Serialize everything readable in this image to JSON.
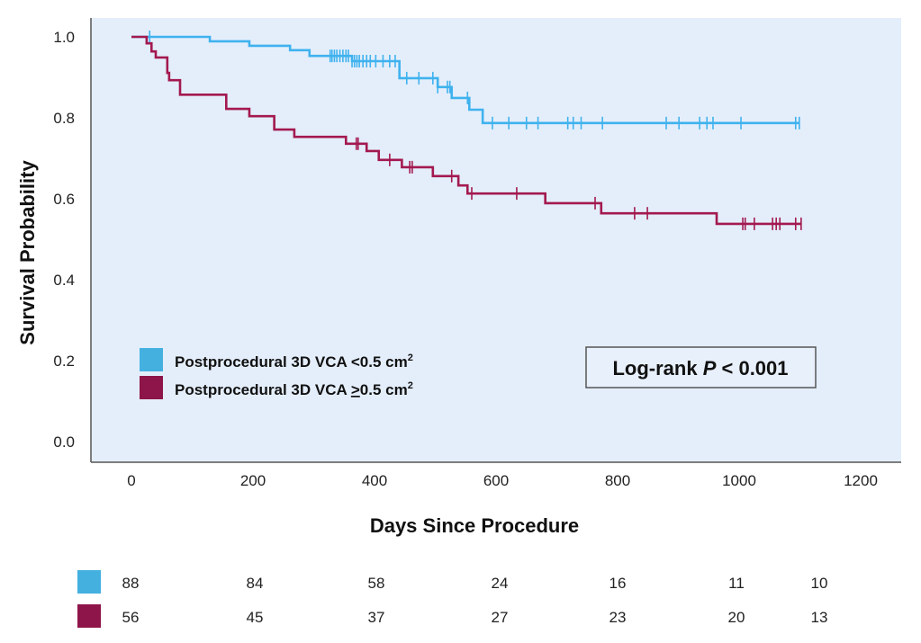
{
  "chart_data": {
    "type": "line",
    "subtype": "kaplan-meier",
    "title": "",
    "xlabel": "Days Since Procedure",
    "ylabel": "Survival Probability",
    "xlim": [
      -70,
      1270
    ],
    "ylim": [
      -0.05,
      1.05
    ],
    "xticks": [
      0,
      200,
      400,
      600,
      800,
      1000,
      1200
    ],
    "xtick_labels": [
      "0",
      "200",
      "400",
      "600",
      "800",
      "1000",
      "1200"
    ],
    "yticks": [
      0.0,
      0.2,
      0.4,
      0.6,
      0.8,
      1.0
    ],
    "ytick_labels": [
      "0.0",
      "0.2",
      "0.4",
      "0.6",
      "0.8",
      "1.0"
    ],
    "grid": false,
    "plot_background": "#e4eefb",
    "legend_position": "lower-left",
    "annotation": {
      "prefix": "Log-rank ",
      "italic": "P",
      "suffix": " < 0.001"
    },
    "series": [
      {
        "name": "Postprocedural 3D VCA <0.5 cm²",
        "label_main": "Postprocedural 3D VCA <0.5 cm",
        "label_sup": "2",
        "color": "#3fb2ee",
        "legend_color": "#44b0e0",
        "steps": [
          [
            0,
            1.0
          ],
          [
            129,
            0.989
          ],
          [
            194,
            0.978
          ],
          [
            261,
            0.967
          ],
          [
            293,
            0.953
          ],
          [
            363,
            0.94
          ],
          [
            441,
            0.898
          ],
          [
            504,
            0.876
          ],
          [
            527,
            0.849
          ],
          [
            556,
            0.82
          ],
          [
            578,
            0.787
          ]
        ],
        "end_day": 1099,
        "censored": [
          30,
          327,
          330,
          334,
          338,
          343,
          348,
          353,
          357,
          363,
          367,
          371,
          375,
          381,
          387,
          393,
          402,
          414,
          425,
          434,
          453,
          473,
          496,
          504,
          520,
          524,
          553,
          594,
          621,
          650,
          669,
          718,
          727,
          740,
          775,
          880,
          901,
          935,
          947,
          957,
          1003,
          1093
        ]
      },
      {
        "name": "Postprocedural 3D VCA ≥0.5 cm²",
        "label_main_pre": "Postprocedural 3D VCA ",
        "label_underlined": ">",
        "label_main_post": "0.5 cm",
        "label_sup": "2",
        "color": "#a3194f",
        "legend_color": "#8e1549",
        "steps": [
          [
            0,
            1.0
          ],
          [
            25,
            0.984
          ],
          [
            33,
            0.964
          ],
          [
            40,
            0.949
          ],
          [
            59,
            0.911
          ],
          [
            62,
            0.893
          ],
          [
            80,
            0.857
          ],
          [
            156,
            0.822
          ],
          [
            194,
            0.804
          ],
          [
            235,
            0.771
          ],
          [
            268,
            0.753
          ],
          [
            353,
            0.736
          ],
          [
            387,
            0.718
          ],
          [
            407,
            0.696
          ],
          [
            445,
            0.678
          ],
          [
            496,
            0.656
          ],
          [
            538,
            0.633
          ],
          [
            553,
            0.613
          ],
          [
            681,
            0.589
          ],
          [
            773,
            0.564
          ],
          [
            963,
            0.538
          ]
        ],
        "end_day": 1102,
        "censored": [
          370,
          373,
          425,
          458,
          462,
          527,
          560,
          634,
          763,
          828,
          849,
          1006,
          1010,
          1025,
          1055,
          1061,
          1067,
          1093
        ]
      }
    ],
    "risk_table": {
      "days": [
        0,
        200,
        400,
        600,
        800,
        1000,
        1100
      ],
      "rows": [
        {
          "series": 0,
          "values": [
            "88",
            "84",
            "58",
            "24",
            "16",
            "11",
            "10"
          ]
        },
        {
          "series": 1,
          "values": [
            "56",
            "45",
            "37",
            "27",
            "23",
            "20",
            "13"
          ]
        }
      ]
    }
  }
}
